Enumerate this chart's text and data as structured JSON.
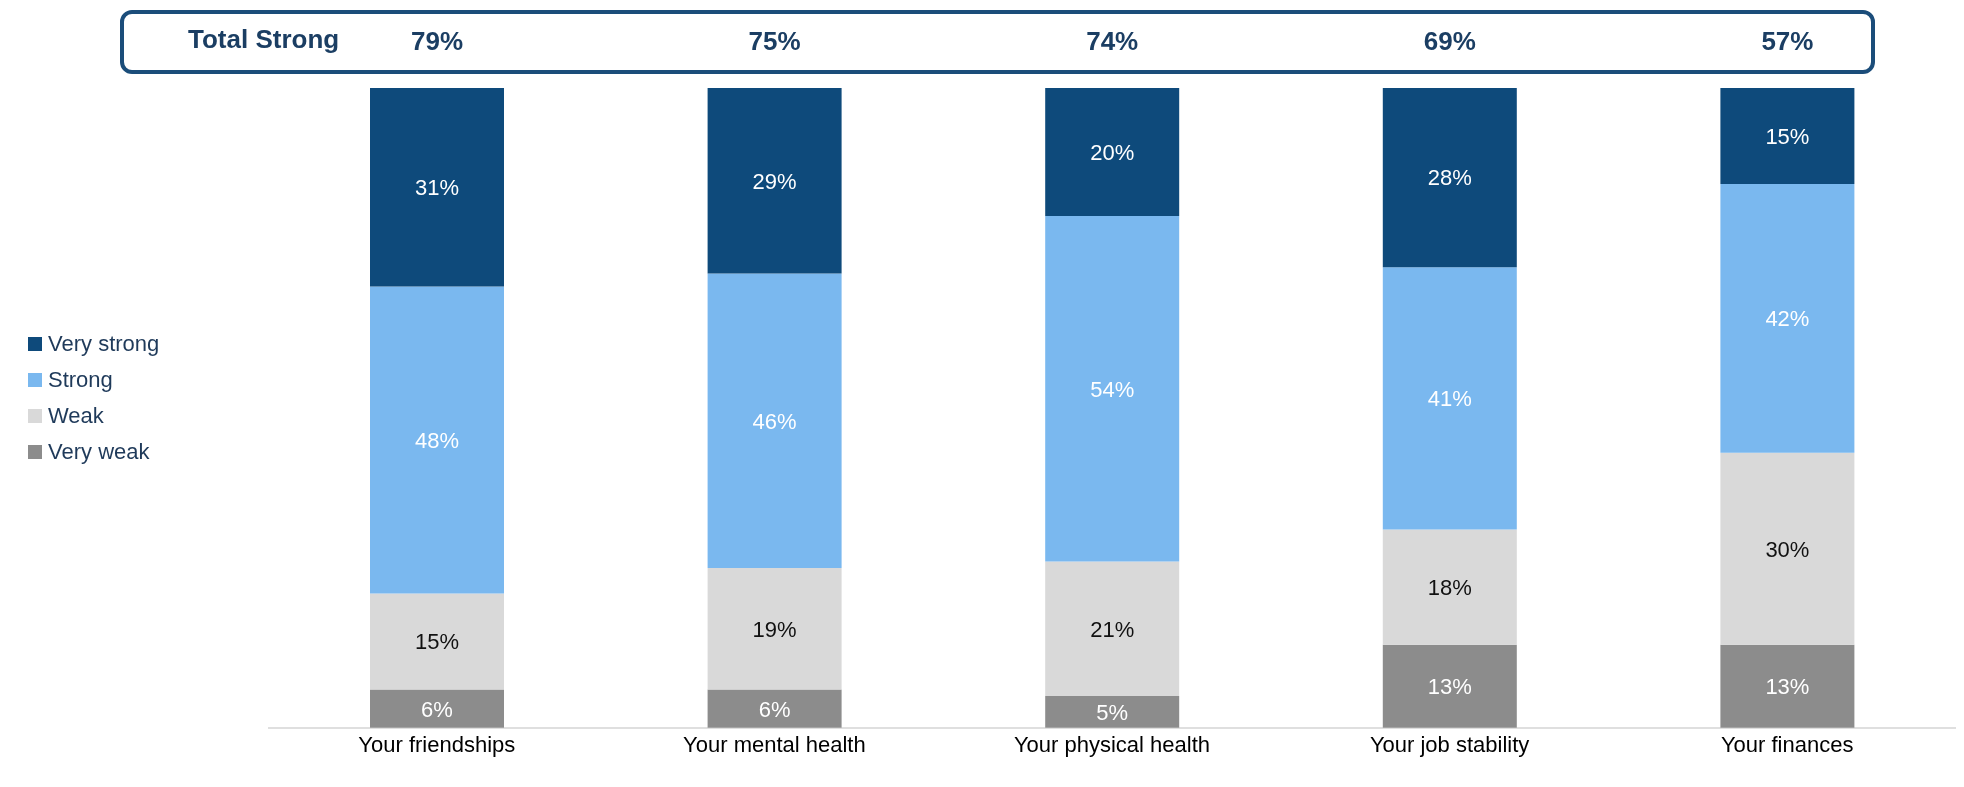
{
  "chart_data": {
    "type": "bar",
    "stacked": true,
    "categories": [
      "Your friendships",
      "Your mental health",
      "Your physical health",
      "Your job stability",
      "Your finances"
    ],
    "series": [
      {
        "name": "Very weak",
        "color": "#8c8c8c",
        "values": [
          6,
          6,
          5,
          13,
          13
        ],
        "value_labels": [
          "6%",
          "6%",
          "5%",
          "13%",
          "13%"
        ]
      },
      {
        "name": "Weak",
        "color": "#d9d9d9",
        "values": [
          15,
          19,
          21,
          18,
          30
        ],
        "value_labels": [
          "15%",
          "19%",
          "21%",
          "18%",
          "30%"
        ]
      },
      {
        "name": "Strong",
        "color": "#7ab8ef",
        "values": [
          48,
          46,
          54,
          41,
          42
        ],
        "value_labels": [
          "48%",
          "46%",
          "54%",
          "41%",
          "42%"
        ]
      },
      {
        "name": "Very strong",
        "color": "#0e4a7b",
        "values": [
          31,
          29,
          20,
          28,
          15
        ],
        "value_labels": [
          "31%",
          "29%",
          "20%",
          "28%",
          "15%"
        ]
      }
    ],
    "tick_labels": "x",
    "legend": "left",
    "annotations": [
      "Total Strong",
      "79%",
      "75%",
      "74%",
      "69%",
      "57%"
    ]
  }
}
